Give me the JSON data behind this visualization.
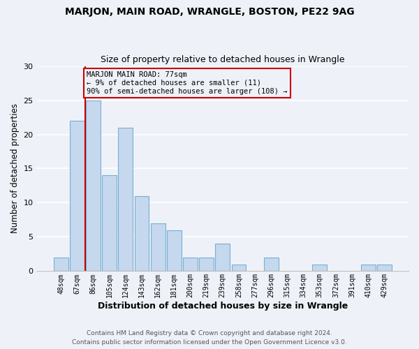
{
  "title": "MARJON, MAIN ROAD, WRANGLE, BOSTON, PE22 9AG",
  "subtitle": "Size of property relative to detached houses in Wrangle",
  "xlabel": "Distribution of detached houses by size in Wrangle",
  "ylabel": "Number of detached properties",
  "bar_labels": [
    "48sqm",
    "67sqm",
    "86sqm",
    "105sqm",
    "124sqm",
    "143sqm",
    "162sqm",
    "181sqm",
    "200sqm",
    "219sqm",
    "239sqm",
    "258sqm",
    "277sqm",
    "296sqm",
    "315sqm",
    "334sqm",
    "353sqm",
    "372sqm",
    "391sqm",
    "410sqm",
    "429sqm"
  ],
  "bar_values": [
    2,
    22,
    25,
    14,
    21,
    11,
    7,
    6,
    2,
    2,
    4,
    1,
    0,
    2,
    0,
    0,
    1,
    0,
    0,
    1,
    1
  ],
  "bar_color": "#c5d8ed",
  "bar_edgecolor": "#7aadd4",
  "vline_color": "#cc0000",
  "annotation_title": "MARJON MAIN ROAD: 77sqm",
  "annotation_line1": "← 9% of detached houses are smaller (11)",
  "annotation_line2": "90% of semi-detached houses are larger (108) →",
  "annotation_box_edgecolor": "#cc0000",
  "ylim": [
    0,
    30
  ],
  "yticks": [
    0,
    5,
    10,
    15,
    20,
    25,
    30
  ],
  "footer1": "Contains HM Land Registry data © Crown copyright and database right 2024.",
  "footer2": "Contains public sector information licensed under the Open Government Licence v3.0.",
  "bg_color": "#eef2f8",
  "grid_color": "#ffffff"
}
